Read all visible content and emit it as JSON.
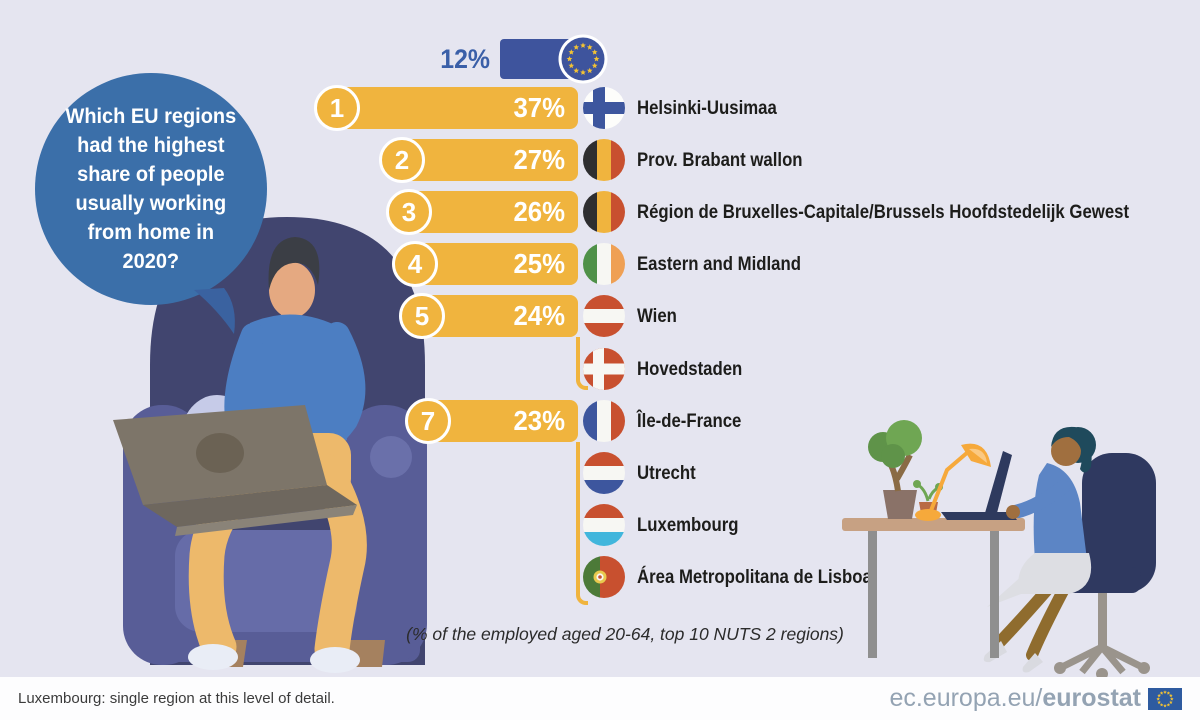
{
  "page": {
    "background_color": "#E5E5F0",
    "bubble": {
      "text": "Which EU regions had the highest share of people usually working from home in 2020?",
      "lines": [
        "Which EU regions",
        "had the highest",
        "share of people",
        "usually working",
        "from home in",
        "2020?"
      ],
      "color": "#3B6FA9"
    },
    "caption": "(% of the employed aged 20-64, top 10 NUTS 2 regions)",
    "footer": {
      "note": "Luxembourg: single region at this level of detail.",
      "url_prefix": "ec.europa.eu/",
      "url_bold": "eurostat",
      "flag": "eu-flag-icon"
    }
  },
  "chart_data": {
    "type": "bar",
    "orientation": "horizontal",
    "title": "Which EU regions had the highest share of people usually working from home in 2020?",
    "caption": "(% of the employed aged 20-64, top 10 NUTS 2 regions)",
    "unit": "% of the employed aged 20-64",
    "bar_color": "#F0B43E",
    "eu_bar_color": "#3E549D",
    "eu_reference": {
      "label": "EU",
      "value": 12,
      "value_label": "12%",
      "flag": "eu"
    },
    "rows": [
      {
        "rank": "1",
        "value": 37,
        "value_label": "37%",
        "bar_shown": true,
        "region": "Helsinki-Uusimaa",
        "country": "Finland",
        "flag": "finland"
      },
      {
        "rank": "2",
        "value": 27,
        "value_label": "27%",
        "bar_shown": true,
        "region": "Prov. Brabant wallon",
        "country": "Belgium",
        "flag": "belgium"
      },
      {
        "rank": "3",
        "value": 26,
        "value_label": "26%",
        "bar_shown": true,
        "region": "Région de Bruxelles-Capitale/Brussels Hoofdstedelijk Gewest",
        "country": "Belgium",
        "flag": "belgium"
      },
      {
        "rank": "4",
        "value": 25,
        "value_label": "25%",
        "bar_shown": true,
        "region": "Eastern and Midland",
        "country": "Ireland",
        "flag": "ireland"
      },
      {
        "rank": "5",
        "value": 24,
        "value_label": "24%",
        "bar_shown": true,
        "region": "Wien",
        "country": "Austria",
        "flag": "austria"
      },
      {
        "rank": null,
        "value": 24,
        "value_label": null,
        "bar_shown": false,
        "region": "Hovedstaden",
        "country": "Denmark",
        "flag": "denmark"
      },
      {
        "rank": "7",
        "value": 23,
        "value_label": "23%",
        "bar_shown": true,
        "region": "Île-de-France",
        "country": "France",
        "flag": "france"
      },
      {
        "rank": null,
        "value": 23,
        "value_label": null,
        "bar_shown": false,
        "region": "Utrecht",
        "country": "Netherlands",
        "flag": "netherlands"
      },
      {
        "rank": null,
        "value": 23,
        "value_label": null,
        "bar_shown": false,
        "region": "Luxembourg",
        "country": "Luxembourg",
        "flag": "luxembourg"
      },
      {
        "rank": null,
        "value": 23,
        "value_label": null,
        "bar_shown": false,
        "region": "Área Metropolitana de Lisboa",
        "country": "Portugal",
        "flag": "portugal"
      }
    ],
    "ties": [
      {
        "value": 24,
        "regions": [
          "Wien",
          "Hovedstaden"
        ]
      },
      {
        "value": 23,
        "regions": [
          "Île-de-France",
          "Utrecht",
          "Luxembourg",
          "Área Metropolitana de Lisboa"
        ]
      }
    ]
  }
}
